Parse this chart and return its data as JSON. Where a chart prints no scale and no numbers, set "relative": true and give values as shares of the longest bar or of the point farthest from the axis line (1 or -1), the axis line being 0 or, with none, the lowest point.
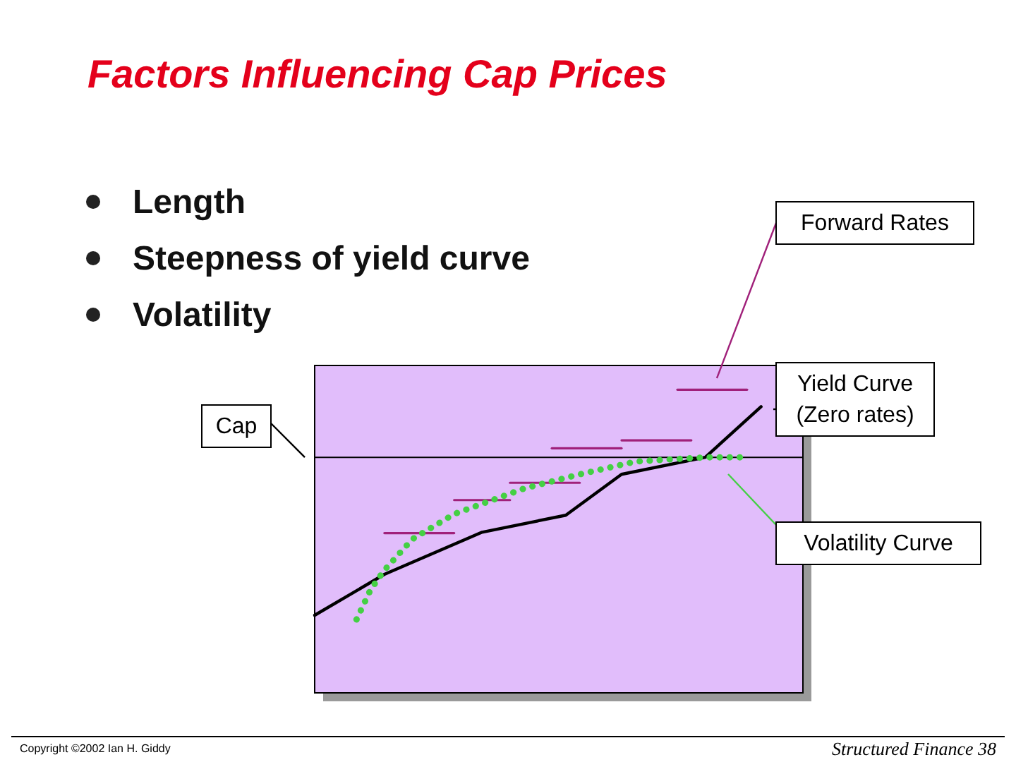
{
  "chart_data": {
    "type": "line",
    "title": "Factors Influencing Cap Prices",
    "relative": true,
    "grid": false,
    "legend": "right",
    "marker": "none",
    "categories": [
      null,
      null,
      null,
      null,
      null,
      null,
      null,
      null,
      null,
      null,
      null,
      null,
      null,
      null,
      null,
      null,
      null,
      null,
      null,
      null,
      null,
      null,
      null,
      null,
      null,
      null,
      null,
      null,
      null,
      null,
      null,
      null,
      null,
      null,
      null,
      null
    ],
    "annotations": [
      "Length",
      "Steepness of yield curve",
      "Volatility",
      "Copyright ©2002 Ian H. Giddy",
      "Structured Finance 38"
    ],
    "ref_lines": [
      {
        "axis": "y",
        "value": 0.777,
        "label": "Cap",
        "color": "#000000",
        "line_style": "solid"
      }
    ],
    "series": [
      {
        "color": "#a0207a",
        "line_style": "solid",
        "values": [
          null,
          null,
          null,
          null,
          null,
          0.527,
          null,
          null,
          null,
          null,
          0.527,
          null,
          null,
          null,
          null,
          null,
          null,
          null,
          null,
          null,
          null,
          null,
          null,
          null,
          null,
          null,
          null,
          null,
          null,
          null,
          null,
          null,
          null,
          null,
          null,
          null
        ]
      },
      {
        "color": "#a0207a",
        "line_style": "solid",
        "values": [
          null,
          null,
          null,
          null,
          null,
          null,
          null,
          null,
          null,
          null,
          0.636,
          null,
          null,
          null,
          0.636,
          null,
          null,
          null,
          null,
          null,
          null,
          null,
          null,
          null,
          null,
          null,
          null,
          null,
          null,
          null,
          null,
          null,
          null,
          null,
          null,
          null
        ]
      },
      {
        "color": "#a0207a",
        "line_style": "solid",
        "values": [
          null,
          null,
          null,
          null,
          null,
          null,
          null,
          null,
          null,
          null,
          null,
          null,
          null,
          null,
          0.693,
          null,
          null,
          null,
          null,
          0.693,
          null,
          null,
          null,
          null,
          null,
          null,
          null,
          null,
          null,
          null,
          null,
          null,
          null,
          null,
          null,
          null
        ]
      },
      {
        "color": "#a0207a",
        "line_style": "solid",
        "values": [
          null,
          null,
          null,
          null,
          null,
          null,
          null,
          null,
          null,
          null,
          null,
          null,
          null,
          null,
          null,
          null,
          null,
          0.807,
          null,
          null,
          null,
          null,
          0.807,
          null,
          null,
          null,
          null,
          null,
          null,
          null,
          null,
          null,
          null,
          null,
          null,
          null
        ]
      },
      {
        "color": "#a0207a",
        "line_style": "solid",
        "values": [
          null,
          null,
          null,
          null,
          null,
          null,
          null,
          null,
          null,
          null,
          null,
          null,
          null,
          null,
          null,
          null,
          null,
          null,
          null,
          null,
          null,
          null,
          0.833,
          null,
          null,
          null,
          null,
          0.833,
          null,
          null,
          null,
          null,
          null,
          null,
          null,
          null
        ]
      },
      {
        "name": "Forward Rates",
        "color": "#a0207a",
        "line_style": "solid",
        "values": [
          null,
          null,
          null,
          null,
          null,
          null,
          null,
          null,
          null,
          null,
          null,
          null,
          null,
          null,
          null,
          null,
          null,
          null,
          null,
          null,
          null,
          null,
          null,
          null,
          null,
          null,
          1.0,
          null,
          null,
          null,
          null,
          1.0,
          null,
          null,
          null,
          null
        ]
      },
      {
        "name": "Yield Curve\n(Zero rates)",
        "color": "#000000",
        "line_style": "solid",
        "values": [
          0.256,
          null,
          null,
          null,
          null,
          0.391,
          null,
          null,
          null,
          null,
          null,
          null,
          0.53,
          null,
          null,
          null,
          null,
          null,
          0.586,
          null,
          null,
          null,
          0.721,
          null,
          null,
          null,
          null,
          null,
          0.777,
          null,
          null,
          null,
          0.944,
          null,
          null,
          null
        ]
      },
      {
        "name": "Volatility Curve",
        "color": "#44d044",
        "line_style": "dotted",
        "values": [
          null,
          null,
          null,
          0.242,
          0.34,
          0.405,
          null,
          0.507,
          null,
          null,
          0.59,
          null,
          null,
          null,
          null,
          0.674,
          null,
          null,
          null,
          0.721,
          null,
          null,
          null,
          0.763,
          null,
          null,
          null,
          null,
          0.777,
          null,
          null,
          0.777,
          null,
          null,
          null,
          null
        ]
      }
    ]
  }
}
